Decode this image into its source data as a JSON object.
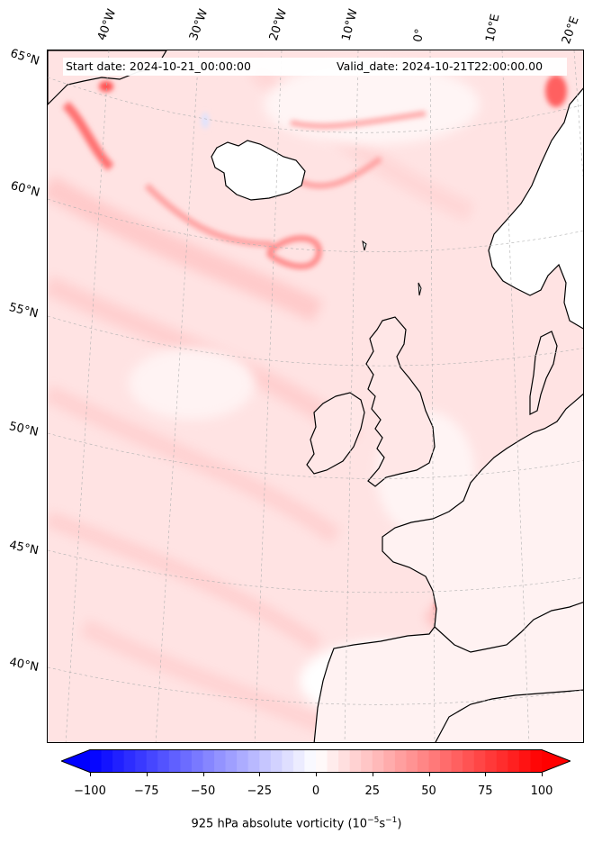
{
  "header": {
    "start_date": "Start date: 2024-10-21_00:00:00",
    "valid_date": "Valid_date: 2024-10-21T22:00:00.00"
  },
  "lon_labels": [
    "40°W",
    "30°W",
    "20°W",
    "10°W",
    "0°",
    "10°E",
    "20°E"
  ],
  "lat_labels": [
    "65°N",
    "60°N",
    "55°N",
    "50°N",
    "45°N",
    "40°N"
  ],
  "colorbar": {
    "ticks": [
      "−100",
      "−75",
      "−50",
      "−25",
      "0",
      "25",
      "50",
      "75",
      "100"
    ],
    "label": "925 hPa absolute vorticity (10",
    "label_exp1": "−5",
    "label_mid": "s",
    "label_exp2": "−1",
    "label_end": ")",
    "vmin": -100,
    "vmax": 100,
    "cmap": "bwr",
    "low_color": "#0000ff",
    "mid_color": "#ffffff",
    "high_color": "#ff0000"
  },
  "colors": {
    "ocean_base": "#ffe6e6",
    "land_outline": "#000000",
    "grid": "#b0b0b0"
  }
}
